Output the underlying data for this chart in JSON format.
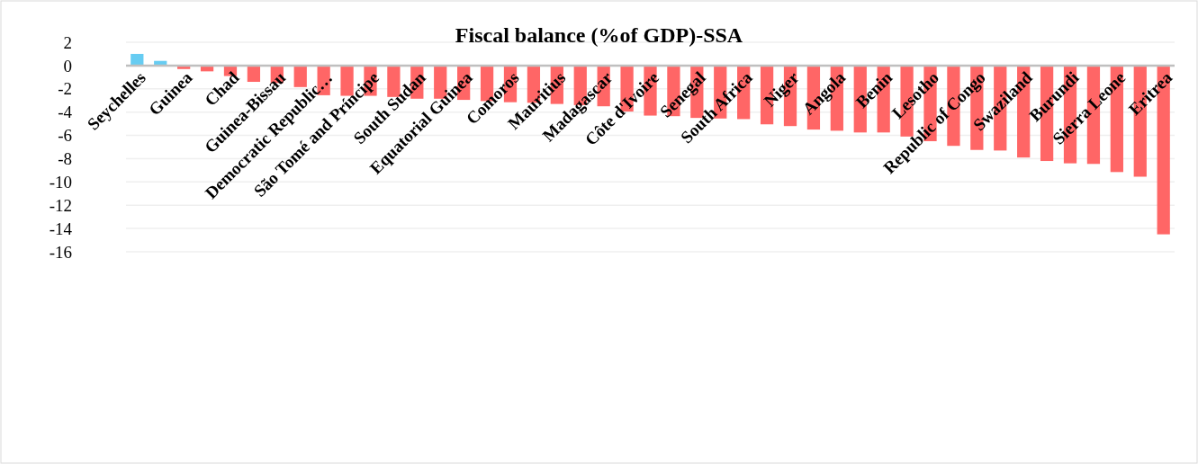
{
  "chart_data": {
    "type": "bar",
    "title": "Fiscal balance (%of GDP)-SSA",
    "categories": [
      "Seychelles",
      null,
      "Guinea",
      null,
      "Chad",
      null,
      "Guinea-Bissau",
      null,
      "Democratic Republic…",
      null,
      "São Tomé and Príncipe",
      null,
      "South Sudan",
      null,
      "Equatorial Guinea",
      null,
      "Comoros",
      null,
      "Mauritius",
      null,
      "Madagascar",
      null,
      "Côte d'Ivoire",
      null,
      "Senegal",
      null,
      "South Africa",
      null,
      "Niger",
      null,
      "Angola",
      null,
      "Benin",
      null,
      "Lesotho",
      null,
      "Republic of Congo",
      null,
      "Swaziland",
      null,
      "Burundi",
      null,
      "Sierra Leone",
      null,
      "Eritrea"
    ],
    "values": [
      1.0,
      0.4,
      -0.3,
      -0.5,
      -0.9,
      -1.4,
      -1.5,
      -1.85,
      -2.55,
      -2.6,
      -2.6,
      -2.7,
      -2.85,
      -2.85,
      -2.95,
      -3.05,
      -3.15,
      -3.2,
      -3.3,
      -3.4,
      -3.5,
      -3.95,
      -4.3,
      -4.35,
      -4.5,
      -4.55,
      -4.6,
      -5.05,
      -5.2,
      -5.5,
      -5.6,
      -5.75,
      -5.75,
      -6.1,
      -6.5,
      -6.9,
      -7.25,
      -7.3,
      -7.9,
      -8.2,
      -8.4,
      -8.45,
      -9.15,
      -9.55,
      -14.5
    ],
    "colors": [
      "#66ccf2",
      "#66ccf2",
      "#ff6666",
      "#ff6666",
      "#ff6666",
      "#ff6666",
      "#ff6666",
      "#ff6666",
      "#ff6666",
      "#ff6666",
      "#ff6666",
      "#ff6666",
      "#ff6666",
      "#ff6666",
      "#ff6666",
      "#ff6666",
      "#ff6666",
      "#ff6666",
      "#ff6666",
      "#ff6666",
      "#ff6666",
      "#ff6666",
      "#ff6666",
      "#ff6666",
      "#ff6666",
      "#ff6666",
      "#ff6666",
      "#ff6666",
      "#ff6666",
      "#ff6666",
      "#ff6666",
      "#ff6666",
      "#ff6666",
      "#ff6666",
      "#ff6666",
      "#ff6666",
      "#ff6666",
      "#ff6666",
      "#ff6666",
      "#ff6666",
      "#ff6666",
      "#ff6666",
      "#ff6666",
      "#ff6666",
      "#ff6666"
    ],
    "ylim": [
      -16,
      2
    ],
    "yticks": [
      2,
      0,
      -2,
      -4,
      -6,
      -8,
      -10,
      -12,
      -14,
      -16
    ],
    "grid": "y"
  }
}
